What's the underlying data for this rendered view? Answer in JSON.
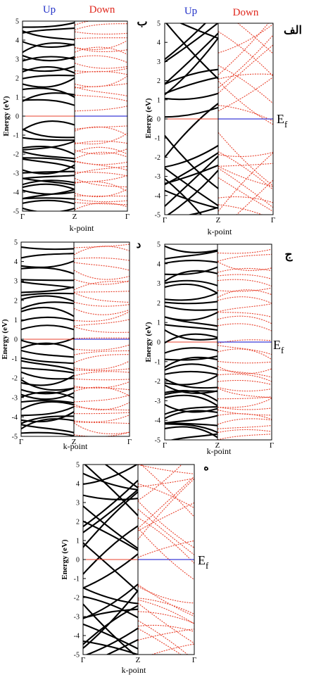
{
  "colors": {
    "spin_up_bands": "#000000",
    "spin_down_bands": "#e8412c",
    "up_label": "#2231c8",
    "down_label": "#e0261c",
    "fermi_up_line": "#e8412c",
    "fermi_down_line": "#3a3ad6",
    "frame": "#000000"
  },
  "chart_data": [
    {
      "type": "line",
      "panel_label": "ب",
      "header_up": "Up",
      "header_down": "Down",
      "fermi_label": "",
      "xlabel": "k-point",
      "ylabel": "Energy (eV)",
      "x_ticks": [
        "Γ",
        "Z",
        "Γ"
      ],
      "y_ticks": [
        "-5",
        "-4",
        "-3",
        "-2",
        "-1",
        "0",
        "1",
        "2",
        "3",
        "4",
        "5"
      ],
      "ylim": [
        -5,
        5
      ],
      "series": [
        {
          "spin": "up",
          "curve": "bow",
          "energies": [
            -4.85,
            -4.6,
            -4.35,
            -4.1,
            -3.95,
            -3.8,
            -3.55,
            -3.45,
            -3.2,
            -2.95,
            -2.7,
            -2.5,
            -2.3,
            -2.05,
            -1.85,
            -1.55,
            -1.2,
            -0.9,
            -0.6,
            0.7,
            0.95,
            1.2,
            1.85,
            2.05,
            2.3,
            2.55,
            2.95,
            3.15,
            3.55,
            3.85,
            4.25,
            4.5,
            4.8
          ]
        },
        {
          "spin": "down",
          "curve": "bow",
          "energies": [
            -4.85,
            -4.6,
            -4.4,
            -4.2,
            -3.95,
            -3.75,
            -3.5,
            -3.3,
            -3.05,
            -2.85,
            -2.6,
            -2.4,
            -2.2,
            -1.95,
            -1.75,
            -1.45,
            -1.15,
            -0.9,
            -0.6,
            0.4,
            0.95,
            1.3,
            1.6,
            1.9,
            2.2,
            2.45,
            2.7,
            2.95,
            3.3,
            3.55,
            3.8,
            4.1,
            4.4,
            4.7,
            4.9
          ]
        }
      ]
    },
    {
      "type": "line",
      "panel_label": "الف",
      "header_up": "Up",
      "header_down": "Down",
      "fermi_label": "Ef",
      "xlabel": "k-point",
      "ylabel": "Energy (eV)",
      "x_ticks": [
        "Γ",
        "Z",
        "Γ"
      ],
      "y_ticks": [
        "-5",
        "-4",
        "-3",
        "-2",
        "-1",
        "0",
        "1",
        "2",
        "3",
        "4",
        "5"
      ],
      "ylim": [
        -5,
        5
      ],
      "series": [
        {
          "spin": "up",
          "curve": "cross",
          "energies": [
            -4.9,
            -4.6,
            -4.2,
            -3.9,
            -3.55,
            -3.25,
            -2.9,
            -2.6,
            -2.25,
            -1.95,
            -0.6,
            0.35,
            1.2,
            1.75,
            2.2,
            2.75,
            3.15,
            3.6,
            4.0,
            4.4,
            4.8
          ]
        },
        {
          "spin": "down",
          "curve": "cross",
          "energies": [
            -4.85,
            -4.55,
            -4.25,
            -3.95,
            -3.6,
            -3.3,
            -3.0,
            -2.7,
            -2.4,
            -2.1,
            -1.8,
            0.3,
            0.85,
            1.3,
            1.8,
            2.2,
            2.6,
            3.0,
            3.4,
            3.8,
            4.2,
            4.6
          ]
        }
      ]
    },
    {
      "type": "line",
      "panel_label": "د",
      "header_up": "",
      "header_down": "",
      "fermi_label": "",
      "xlabel": "k-point",
      "ylabel": "Energy (eV)",
      "x_ticks": [
        "Γ",
        "Z",
        "Γ"
      ],
      "y_ticks": [
        "-5",
        "-4",
        "-3",
        "-2",
        "-1",
        "0",
        "1",
        "2",
        "3",
        "4",
        "5"
      ],
      "ylim": [
        -5,
        5
      ],
      "series": [
        {
          "spin": "up",
          "curve": "bow",
          "energies": [
            -4.9,
            -4.6,
            -4.4,
            -4.15,
            -3.95,
            -3.7,
            -3.5,
            -3.25,
            -3.0,
            -2.8,
            -2.55,
            -2.3,
            -2.05,
            -1.85,
            -1.6,
            -1.35,
            -1.1,
            -0.75,
            -0.5,
            0.0,
            0.5,
            0.95,
            1.3,
            1.7,
            2.0,
            2.3,
            2.55,
            2.8,
            3.05,
            3.5,
            3.9,
            4.3,
            4.7
          ]
        },
        {
          "spin": "down",
          "curve": "bow",
          "energies": [
            -4.85,
            -4.55,
            -4.3,
            -4.05,
            -3.8,
            -3.55,
            -3.3,
            -3.05,
            -2.8,
            -2.55,
            -2.3,
            -2.05,
            -1.8,
            -1.55,
            -1.3,
            -1.0,
            -0.7,
            -0.4,
            0.05,
            0.5,
            0.85,
            1.2,
            1.55,
            1.85,
            2.15,
            2.45,
            2.75,
            3.05,
            3.4,
            3.75,
            4.1,
            4.45,
            4.8
          ]
        }
      ]
    },
    {
      "type": "line",
      "panel_label": "ج",
      "header_up": "",
      "header_down": "",
      "fermi_label": "Ef",
      "xlabel": "k-point",
      "ylabel": "Energy (eV)",
      "x_ticks": [
        "Γ",
        "Z",
        "Γ"
      ],
      "y_ticks": [
        "-5",
        "-4",
        "-3",
        "-2",
        "-1",
        "0",
        "1",
        "2",
        "3",
        "4",
        "5"
      ],
      "ylim": [
        -5,
        5
      ],
      "series": [
        {
          "spin": "up",
          "curve": "bow",
          "energies": [
            -4.9,
            -4.65,
            -4.4,
            -4.2,
            -3.95,
            -3.75,
            -3.5,
            -3.3,
            -3.05,
            -2.8,
            -2.6,
            -2.35,
            -2.1,
            -1.9,
            -1.65,
            -1.4,
            -1.1,
            -0.8,
            -0.5,
            0.1,
            0.4,
            0.75,
            1.05,
            1.4,
            1.75,
            2.05,
            2.35,
            2.65,
            2.95,
            3.3,
            3.65,
            4.05,
            4.45,
            4.8
          ]
        },
        {
          "spin": "down",
          "curve": "bow",
          "energies": [
            -4.85,
            -4.6,
            -4.35,
            -4.1,
            -3.85,
            -3.6,
            -3.35,
            -3.1,
            -2.85,
            -2.6,
            -2.35,
            -2.1,
            -1.85,
            -1.6,
            -1.3,
            -1.0,
            -0.7,
            -0.4,
            0.0,
            0.7,
            1.05,
            1.4,
            1.75,
            2.05,
            2.35,
            2.7,
            3.0,
            3.3,
            3.6,
            3.95,
            4.3,
            4.65
          ]
        }
      ]
    },
    {
      "type": "line",
      "panel_label": "ه",
      "header_up": "",
      "header_down": "",
      "fermi_label": "Ef",
      "xlabel": "k-point",
      "ylabel": "Energy (eV)",
      "x_ticks": [
        "Γ",
        "Z",
        "Γ"
      ],
      "y_ticks": [
        "-5",
        "-4",
        "-3",
        "-2",
        "-1",
        "0",
        "1",
        "2",
        "3",
        "4",
        "5"
      ],
      "ylim": [
        -5,
        5
      ],
      "series": [
        {
          "spin": "up",
          "curve": "cross",
          "energies": [
            -4.9,
            -4.65,
            -4.35,
            -4.05,
            -3.75,
            -3.45,
            -3.15,
            -2.85,
            -2.5,
            -2.2,
            -1.9,
            -0.6,
            -0.4,
            0.5,
            1.25,
            1.7,
            2.1,
            2.55,
            2.95,
            3.3,
            3.7,
            4.1,
            4.5,
            4.85
          ]
        },
        {
          "spin": "down",
          "curve": "cross",
          "energies": [
            -4.85,
            -4.55,
            -4.25,
            -3.95,
            -3.65,
            -3.35,
            -3.05,
            -2.75,
            -2.45,
            -2.15,
            -1.85,
            0.3,
            0.55,
            1.0,
            1.45,
            1.85,
            2.25,
            2.65,
            3.0,
            3.35,
            3.7,
            4.05,
            4.4,
            4.75
          ]
        }
      ]
    }
  ]
}
